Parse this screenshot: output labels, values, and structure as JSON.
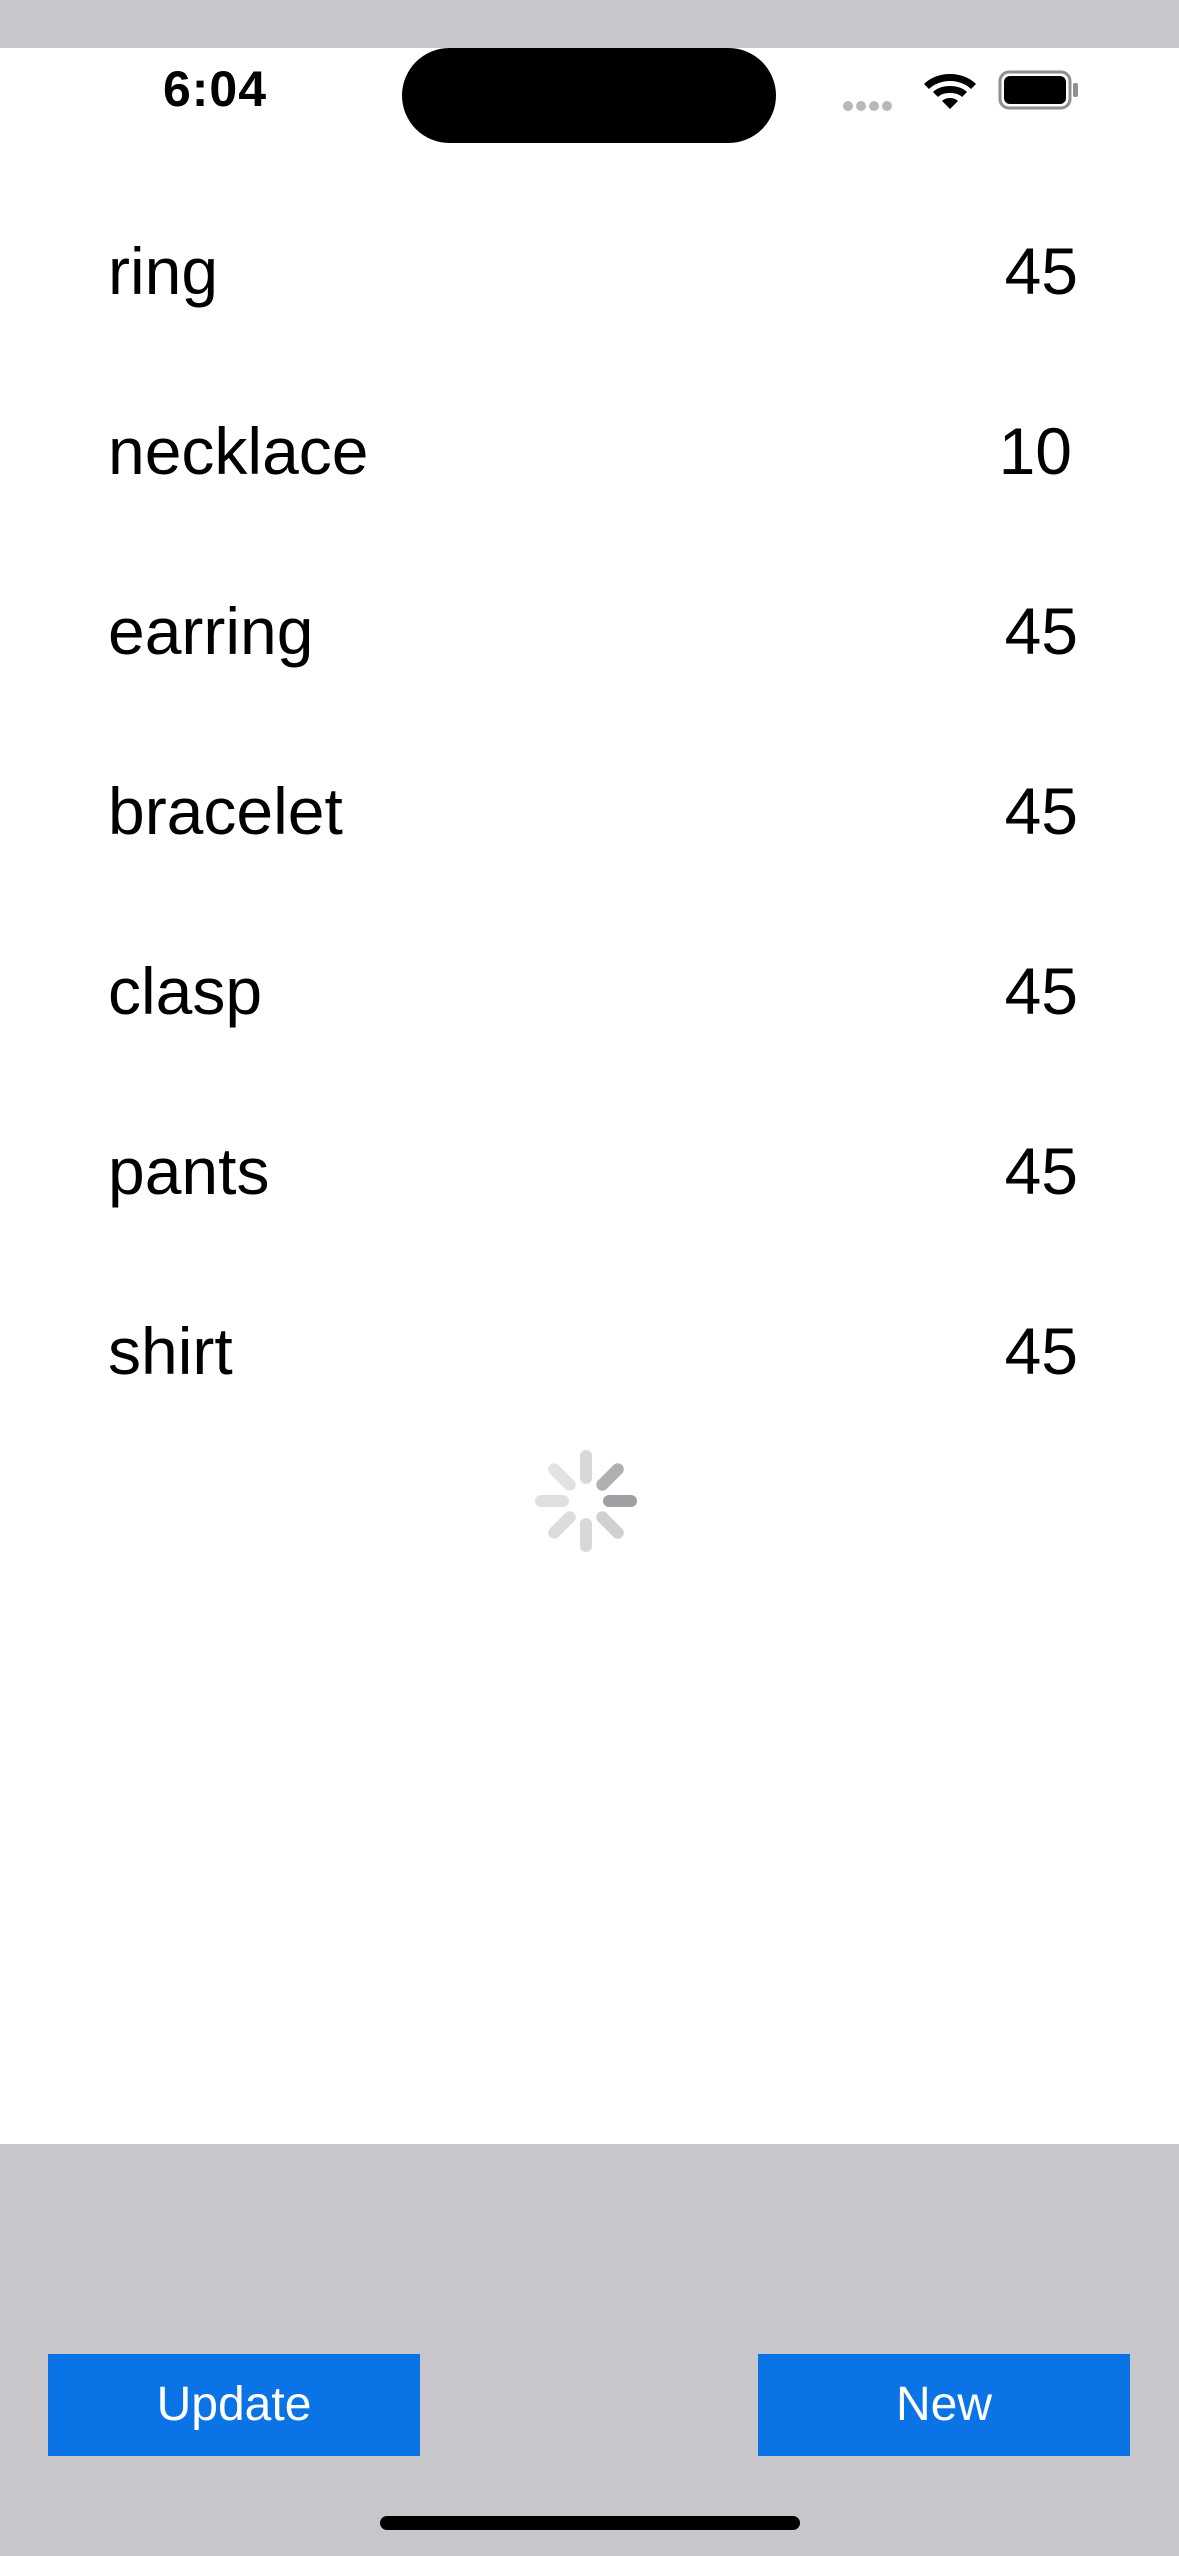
{
  "status_bar": {
    "time": "6:04"
  },
  "items": [
    {
      "name": "ring",
      "qty": "45"
    },
    {
      "name": "necklace",
      "qty": "10"
    },
    {
      "name": "earring",
      "qty": "45"
    },
    {
      "name": "bracelet",
      "qty": "45"
    },
    {
      "name": "clasp",
      "qty": "45"
    },
    {
      "name": "pants",
      "qty": "45"
    },
    {
      "name": "shirt",
      "qty": "45"
    }
  ],
  "toolbar": {
    "update_label": "Update",
    "new_label": "New"
  },
  "icons": {
    "wifi": "wifi-icon",
    "battery": "battery-icon",
    "cellular": "cellular-signal-icon",
    "spinner": "loading-spinner-icon"
  },
  "colors": {
    "accent": "#0a74e6",
    "bar_background": "#c7c7cb"
  }
}
